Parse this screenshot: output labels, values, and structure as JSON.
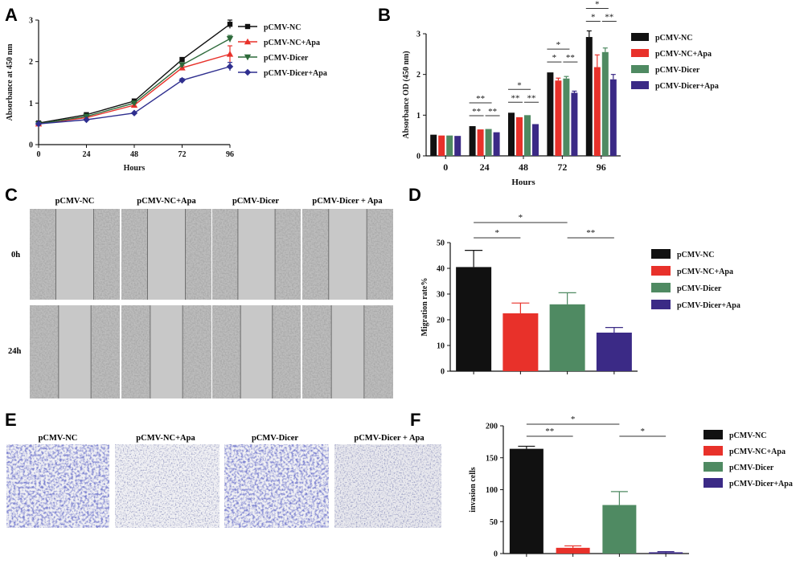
{
  "panel_letters": [
    "A",
    "B",
    "C",
    "D",
    "E",
    "F"
  ],
  "colors": {
    "nc": "#111111",
    "nc_apa": "#e8312a",
    "dicer": "#4f8a62",
    "dicer_apa": "#3b2a86",
    "dicer_line": "#2d6a3a",
    "dicer_apa_line": "#2f2f8f"
  },
  "chart_data": [
    {
      "panel": "A",
      "type": "line",
      "xlabel": "Hours",
      "ylabel": "Absorbance at 450 nm",
      "x": [
        0,
        24,
        48,
        72,
        96
      ],
      "xlim": [
        0,
        96
      ],
      "ylim": [
        0,
        3
      ],
      "yticks": [
        0,
        1,
        2,
        3
      ],
      "legend_position": "top-right",
      "series": [
        {
          "name": "pCMV-NC",
          "marker": "square",
          "color": "#111111",
          "values": [
            0.52,
            0.72,
            1.05,
            2.05,
            2.9
          ],
          "errors": [
            0.02,
            0.03,
            0.04,
            0.04,
            0.1
          ]
        },
        {
          "name": "pCMV-NC+Apa",
          "marker": "triangle-up",
          "color": "#e8312a",
          "values": [
            0.5,
            0.65,
            0.95,
            1.85,
            2.18
          ],
          "errors": [
            0.02,
            0.02,
            0.03,
            0.05,
            0.2
          ]
        },
        {
          "name": "pCMV-Dicer",
          "marker": "triangle-down",
          "color": "#2d6a3a",
          "values": [
            0.5,
            0.68,
            1.0,
            1.92,
            2.55
          ],
          "errors": [
            0.02,
            0.02,
            0.03,
            0.05,
            0.08
          ]
        },
        {
          "name": "pCMV-Dicer+Apa",
          "marker": "diamond",
          "color": "#2f2f8f",
          "values": [
            0.5,
            0.6,
            0.76,
            1.55,
            1.88
          ],
          "errors": [
            0.02,
            0.02,
            0.02,
            0.04,
            0.1
          ]
        }
      ]
    },
    {
      "panel": "B",
      "type": "bar",
      "xlabel": "Hours",
      "ylabel": "Absorbance OD (450 nm)",
      "categories": [
        "0",
        "24",
        "48",
        "72",
        "96"
      ],
      "ylim": [
        0,
        3
      ],
      "yticks": [
        0,
        1,
        2,
        3
      ],
      "legend_position": "top-right",
      "series": [
        {
          "name": "pCMV-NC",
          "color": "#111111",
          "values": [
            0.52,
            0.73,
            1.06,
            2.05,
            2.92
          ],
          "errors": [
            0.02,
            0.02,
            0.02,
            0.02,
            0.15
          ]
        },
        {
          "name": "pCMV-NC+Apa",
          "color": "#e8312a",
          "values": [
            0.5,
            0.65,
            0.95,
            1.85,
            2.18
          ],
          "errors": [
            0.02,
            0.02,
            0.02,
            0.06,
            0.3
          ]
        },
        {
          "name": "pCMV-Dicer",
          "color": "#4f8a62",
          "values": [
            0.5,
            0.66,
            1.0,
            1.9,
            2.55
          ],
          "errors": [
            0.02,
            0.02,
            0.02,
            0.05,
            0.1
          ]
        },
        {
          "name": "pCMV-Dicer+Apa",
          "color": "#3b2a86",
          "values": [
            0.49,
            0.58,
            0.78,
            1.55,
            1.88
          ],
          "errors": [
            0.02,
            0.02,
            0.02,
            0.04,
            0.12
          ]
        }
      ],
      "significance": [
        {
          "category": "24",
          "pair": [
            0,
            1
          ],
          "level": 0,
          "label": "**"
        },
        {
          "category": "24",
          "pair": [
            0,
            2
          ],
          "level": 1,
          "label": "**"
        },
        {
          "category": "24",
          "pair": [
            2,
            3
          ],
          "level": 0,
          "label": "**"
        },
        {
          "category": "48",
          "pair": [
            0,
            1
          ],
          "level": 0,
          "label": "**"
        },
        {
          "category": "48",
          "pair": [
            0,
            2
          ],
          "level": 1,
          "label": "*"
        },
        {
          "category": "48",
          "pair": [
            2,
            3
          ],
          "level": 0,
          "label": "**"
        },
        {
          "category": "72",
          "pair": [
            0,
            1
          ],
          "level": 0,
          "label": "*"
        },
        {
          "category": "72",
          "pair": [
            0,
            2
          ],
          "level": 1,
          "label": "*"
        },
        {
          "category": "72",
          "pair": [
            2,
            3
          ],
          "level": 0,
          "label": "**"
        },
        {
          "category": "96",
          "pair": [
            0,
            1
          ],
          "level": 0,
          "label": "*"
        },
        {
          "category": "96",
          "pair": [
            0,
            2
          ],
          "level": 1,
          "label": "*"
        },
        {
          "category": "96",
          "pair": [
            2,
            3
          ],
          "level": 0,
          "label": "**"
        }
      ]
    },
    {
      "panel": "D",
      "type": "bar",
      "xlabel": "",
      "ylabel": "Migration rate%",
      "categories": [
        "pCMV-NC",
        "pCMV-NC+Apa",
        "pCMV-Dicer",
        "pCMV-Dicer+Apa"
      ],
      "values": [
        40.5,
        22.5,
        26,
        15
      ],
      "errors": [
        6.5,
        4,
        4.5,
        2
      ],
      "colors": [
        "#111111",
        "#e8312a",
        "#4f8a62",
        "#3b2a86"
      ],
      "ylim": [
        0,
        50
      ],
      "yticks": [
        0,
        10,
        20,
        30,
        40,
        50
      ],
      "legend_position": "right",
      "series": [
        {
          "name": "pCMV-NC",
          "color": "#111111"
        },
        {
          "name": "pCMV-NC+Apa",
          "color": "#e8312a"
        },
        {
          "name": "pCMV-Dicer",
          "color": "#4f8a62"
        },
        {
          "name": "pCMV-Dicer+Apa",
          "color": "#3b2a86"
        }
      ],
      "significance": [
        {
          "pair": [
            0,
            2
          ],
          "level": 1,
          "label": "*"
        },
        {
          "pair": [
            0,
            1
          ],
          "level": 0,
          "label": "*"
        },
        {
          "pair": [
            2,
            3
          ],
          "level": 0,
          "label": "**"
        }
      ]
    },
    {
      "panel": "F",
      "type": "bar",
      "xlabel": "",
      "ylabel": "invasion cells",
      "categories": [
        "pCMV-NC",
        "pCMV-NC+Apa",
        "pCMV-Dicer",
        "pCMV-Dicer+Apa"
      ],
      "values": [
        164,
        9,
        76,
        2
      ],
      "errors": [
        4,
        3,
        21,
        1
      ],
      "colors": [
        "#111111",
        "#e8312a",
        "#4f8a62",
        "#3b2a86"
      ],
      "ylim": [
        0,
        200
      ],
      "yticks": [
        0,
        50,
        100,
        150,
        200
      ],
      "legend_position": "right",
      "series": [
        {
          "name": "pCMV-NC",
          "color": "#111111"
        },
        {
          "name": "pCMV-NC+Apa",
          "color": "#e8312a"
        },
        {
          "name": "pCMV-Dicer",
          "color": "#4f8a62"
        },
        {
          "name": "pCMV-Dicer+Apa",
          "color": "#3b2a86"
        }
      ],
      "significance": [
        {
          "pair": [
            0,
            1
          ],
          "level": 0,
          "label": "**"
        },
        {
          "pair": [
            0,
            2
          ],
          "level": 1,
          "label": "*"
        },
        {
          "pair": [
            2,
            3
          ],
          "level": 0,
          "label": "*"
        }
      ]
    }
  ],
  "panel_c": {
    "column_labels": [
      "pCMV-NC",
      "pCMV-NC+Apa",
      "pCMV-Dicer",
      "pCMV-Dicer + Apa"
    ],
    "row_labels": [
      "0h",
      "24h"
    ]
  },
  "panel_e": {
    "column_labels": [
      "pCMV-NC",
      "pCMV-NC+Apa",
      "pCMV-Dicer",
      "pCMV-Dicer + Apa"
    ]
  }
}
